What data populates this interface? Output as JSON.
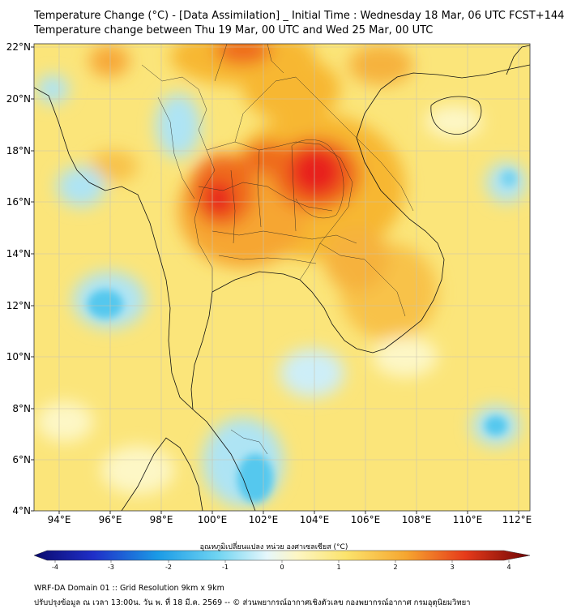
{
  "title_line1": "Temperature Change (°C) - [Data Assimilation] _ Initial Time : Wednesday 18 Mar, 06 UTC FCST+144",
  "title_line2": "Temperature change between Thu 19 Mar, 00 UTC and Wed 25 Mar, 00 UTC",
  "lon_labels": [
    "94°E",
    "96°E",
    "98°E",
    "100°E",
    "102°E",
    "104°E",
    "106°E",
    "108°E",
    "110°E",
    "112°E"
  ],
  "lat_labels": [
    "22°N",
    "20°N",
    "18°N",
    "16°N",
    "14°N",
    "12°N",
    "10°N",
    "8°N",
    "6°N",
    "4°N"
  ],
  "colorbar": {
    "label": "อุณหภูมิเปลี่ยนแปลง หน่วย องศาเซลเซียส (°C)",
    "ticks": [
      "-4",
      "-3",
      "-2",
      "-1",
      "0",
      "1",
      "2",
      "3",
      "4"
    ]
  },
  "footer_line1": "WRF-DA Domain 01 :: Grid Resolution 9km x 9km",
  "footer_line2": "ปรับปรุงข้อมูล ณ เวลา 13:00น. วัน พ. ที่ 18 มี.ค. 2569 -- © ส่วนพยากรณ์อากาศเชิงตัวเลข กองพยากรณ์อากาศ กรมอุตุนิยมวิทยา",
  "colors": {
    "base_field": "#fbe57a",
    "warm": "#f7b733",
    "hot": "#ef6b1e",
    "very_hot": "#e8221a",
    "cool": "#aee4f4",
    "cold": "#55c8ee",
    "neutral": "#fdf7c6"
  }
}
